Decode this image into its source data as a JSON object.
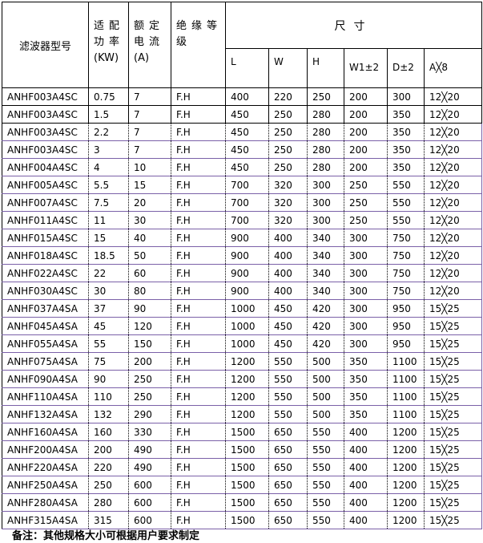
{
  "header": {
    "model": "滤波器型号",
    "power": "适配功率",
    "power_unit": "(KW)",
    "current": "额定电流",
    "current_unit": "(A)",
    "insulation": "绝缘等级",
    "dimensions": "尺寸",
    "dims": [
      "L",
      "W",
      "H",
      "W1±2",
      "D±2",
      "A╳8"
    ]
  },
  "rows": [
    [
      "ANHF003A4SC",
      "0.75",
      "7",
      "F.H",
      "400",
      "220",
      "250",
      "200",
      "300",
      "12╳20"
    ],
    [
      "ANHF003A4SC",
      "1.5",
      "7",
      "F.H",
      "450",
      "250",
      "280",
      "200",
      "350",
      "12╳20"
    ],
    [
      "ANHF003A4SC",
      "2.2",
      "7",
      "F.H",
      "450",
      "250",
      "280",
      "200",
      "350",
      "12╳20"
    ],
    [
      "ANHF003A4SC",
      "3",
      "7",
      "F.H",
      "450",
      "250",
      "280",
      "200",
      "350",
      "12╳20"
    ],
    [
      "ANHF004A4SC",
      "4",
      "10",
      "F.H",
      "450",
      "250",
      "280",
      "200",
      "350",
      "12╳20"
    ],
    [
      "ANHF005A4SC",
      "5.5",
      "15",
      "F.H",
      "700",
      "320",
      "300",
      "250",
      "550",
      "12╳20"
    ],
    [
      "ANHF007A4SC",
      "7.5",
      "20",
      "F.H",
      "700",
      "320",
      "300",
      "250",
      "550",
      "12╳20"
    ],
    [
      "ANHF011A4SC",
      "11",
      "30",
      "F.H",
      "700",
      "320",
      "300",
      "250",
      "550",
      "12╳20"
    ],
    [
      "ANHF015A4SC",
      "15",
      "40",
      "F.H",
      "900",
      "400",
      "340",
      "300",
      "750",
      "12╳20"
    ],
    [
      "ANHF018A4SC",
      "18.5",
      "50",
      "F.H",
      "900",
      "400",
      "340",
      "300",
      "750",
      "12╳20"
    ],
    [
      "ANHF022A4SC",
      "22",
      "60",
      "F.H",
      "900",
      "400",
      "340",
      "300",
      "750",
      "12╳20"
    ],
    [
      "ANHF030A4SC",
      "30",
      "80",
      "F.H",
      "900",
      "400",
      "340",
      "300",
      "750",
      "12╳20"
    ],
    [
      "ANHF037A4SA",
      "37",
      "90",
      "F.H",
      "1000",
      "450",
      "420",
      "300",
      "950",
      "15╳25"
    ],
    [
      "ANHF045A4SA",
      "45",
      "120",
      "F.H",
      "1000",
      "450",
      "420",
      "300",
      "950",
      "15╳25"
    ],
    [
      "ANHF055A4SA",
      "55",
      "150",
      "F.H",
      "1000",
      "450",
      "420",
      "300",
      "950",
      "15╳25"
    ],
    [
      "ANHF075A4SA",
      "75",
      "200",
      "F.H",
      "1200",
      "550",
      "500",
      "350",
      "1100",
      "15╳25"
    ],
    [
      "ANHF090A4SA",
      "90",
      "250",
      "F.H",
      "1200",
      "550",
      "500",
      "350",
      "1100",
      "15╳25"
    ],
    [
      "ANHF110A4SA",
      "110",
      "250",
      "F.H",
      "1200",
      "550",
      "500",
      "350",
      "1100",
      "15╳25"
    ],
    [
      "ANHF132A4SA",
      "132",
      "290",
      "F.H",
      "1200",
      "550",
      "500",
      "350",
      "1100",
      "15╳25"
    ],
    [
      "ANHF160A4SA",
      "160",
      "330",
      "F.H",
      "1500",
      "650",
      "550",
      "400",
      "1200",
      "15╳25"
    ],
    [
      "ANHF200A4SA",
      "200",
      "490",
      "F.H",
      "1500",
      "650",
      "550",
      "400",
      "1200",
      "15╳25"
    ],
    [
      "ANHF220A4SA",
      "220",
      "490",
      "F.H",
      "1500",
      "650",
      "550",
      "400",
      "1200",
      "15╳25"
    ],
    [
      "ANHF250A4SA",
      "250",
      "600",
      "F.H",
      "1500",
      "650",
      "550",
      "400",
      "1200",
      "15╳25"
    ],
    [
      "ANHF280A4SA",
      "280",
      "600",
      "F.H",
      "1500",
      "650",
      "550",
      "400",
      "1200",
      "15╳25"
    ],
    [
      "ANHF315A4SA",
      "315",
      "600",
      "F.H",
      "1500",
      "650",
      "550",
      "400",
      "1200",
      "15╳25"
    ]
  ],
  "note": "备注：其他规格大小可根据用户要求制定"
}
